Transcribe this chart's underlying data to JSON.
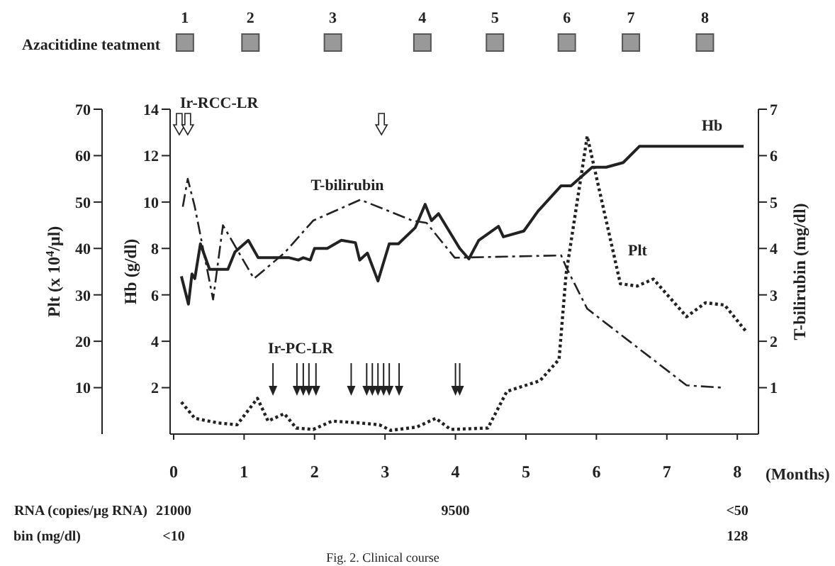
{
  "chart_data": {
    "type": "line",
    "xlabel": "(Months)",
    "ylabel": "Hb (g/dl)",
    "y2label": "T-bilirubin (mg/dl)",
    "y3label": "Plt (x 10$^{4}$/μl)",
    "xlim": [
      -0.05,
      8.3
    ],
    "xticks": [
      0,
      1,
      2,
      3,
      4,
      5,
      6,
      7,
      8
    ],
    "ylim": [
      0,
      14
    ],
    "yticks": [
      2,
      4,
      6,
      8,
      10,
      12,
      14
    ],
    "y2lim": [
      0,
      7
    ],
    "y2ticks": [
      1,
      2,
      3,
      4,
      5,
      6,
      7
    ],
    "y3lim": [
      0,
      70
    ],
    "y3ticks": [
      10,
      20,
      30,
      40,
      50,
      60,
      70
    ],
    "marker": "none",
    "series": [
      {
        "name": "Hb",
        "color": "#222222",
        "axis": "y",
        "line_style": "solid",
        "x": [
          0.11,
          0.21,
          0.26,
          0.3,
          0.38,
          0.51,
          0.77,
          0.87,
          1.06,
          1.2,
          1.64,
          1.77,
          1.84,
          1.94,
          2.0,
          2.18,
          2.38,
          2.58,
          2.64,
          2.75,
          2.9,
          3.06,
          3.19,
          3.43,
          3.57,
          3.66,
          3.76,
          4.06,
          4.19,
          4.33,
          4.61,
          4.68,
          4.97,
          5.17,
          5.5,
          5.64,
          5.94,
          6.14,
          6.38,
          6.61,
          8.09
        ],
        "values": [
          6.8,
          5.6,
          6.9,
          6.7,
          8.2,
          7.1,
          7.1,
          7.85,
          8.35,
          7.6,
          7.6,
          7.5,
          7.6,
          7.5,
          8.0,
          8.0,
          8.35,
          8.25,
          7.5,
          7.8,
          6.6,
          8.2,
          8.2,
          8.9,
          9.9,
          9.2,
          9.5,
          8.0,
          7.55,
          8.35,
          8.95,
          8.5,
          8.75,
          9.6,
          10.7,
          10.7,
          11.5,
          11.5,
          11.7,
          12.4,
          12.4
        ]
      },
      {
        "name": "T-bilirubin",
        "color": "#222222",
        "axis": "y2",
        "line_style": "dashed",
        "x": [
          0.13,
          0.2,
          0.3,
          0.56,
          0.7,
          1.14,
          1.57,
          1.98,
          2.65,
          3.39,
          3.59,
          3.99,
          5.5,
          5.57,
          5.87,
          7.28,
          7.79
        ],
        "values": [
          4.9,
          5.5,
          4.9,
          2.9,
          4.5,
          3.35,
          3.9,
          4.6,
          5.05,
          4.6,
          4.55,
          3.8,
          3.85,
          3.6,
          2.7,
          1.05,
          1.0
        ]
      },
      {
        "name": "Plt",
        "color": "#222222",
        "axis": "y3",
        "line_style": "dotted",
        "x": [
          0.11,
          0.3,
          0.63,
          0.9,
          1.19,
          1.34,
          1.57,
          1.74,
          1.98,
          2.25,
          2.65,
          2.92,
          3.08,
          3.45,
          3.72,
          3.93,
          4.46,
          4.73,
          5.2,
          5.47,
          5.57,
          5.87,
          6.34,
          6.58,
          6.81,
          7.28,
          7.55,
          7.82,
          8.12
        ],
        "values": [
          6.9,
          3.4,
          2.4,
          2.0,
          7.7,
          2.8,
          4.4,
          1.3,
          1.0,
          2.8,
          2.4,
          2.0,
          0.8,
          1.5,
          3.4,
          1.0,
          1.3,
          9.2,
          11.5,
          16.1,
          34.5,
          64.2,
          32.4,
          31.9,
          33.4,
          25.3,
          28.3,
          27.8,
          22.2
        ]
      }
    ],
    "annotations": [
      "Azacitidine teatment",
      "1",
      "2",
      "3",
      "4",
      "5",
      "6",
      "7",
      "8",
      "Ir-RCC-LR",
      "Ir-PC-LR",
      "RNA (copies/μg RNA)",
      "21000",
      "9500",
      "<50",
      "bin (mg/dl)",
      "<10",
      "128",
      "Fig. 2. Clinical course"
    ]
  }
}
